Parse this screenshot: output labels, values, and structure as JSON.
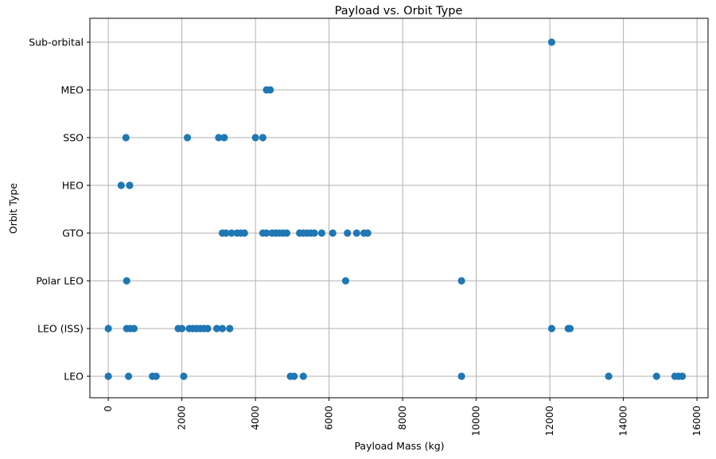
{
  "chart_data": {
    "type": "scatter",
    "title": "Payload vs. Orbit Type",
    "xlabel": "Payload Mass (kg)",
    "ylabel": "Orbit Type",
    "xlim": [
      -500,
      16300
    ],
    "x_ticks": [
      "0",
      "2000",
      "4000",
      "6000",
      "8000",
      "10000",
      "12000",
      "14000",
      "16000"
    ],
    "x_tick_values": [
      0,
      2000,
      4000,
      6000,
      8000,
      10000,
      12000,
      14000,
      16000
    ],
    "categories": [
      "LEO",
      "LEO (ISS)",
      "Polar LEO",
      "GTO",
      "HEO",
      "SSO",
      "MEO",
      "Sub-orbital"
    ],
    "grid": true,
    "point_color": "#1f77b4",
    "series": [
      {
        "points": [
          [
            0,
            "LEO"
          ],
          [
            550,
            "LEO"
          ],
          [
            1200,
            "LEO"
          ],
          [
            1300,
            "LEO"
          ],
          [
            2050,
            "LEO"
          ],
          [
            4950,
            "LEO"
          ],
          [
            5050,
            "LEO"
          ],
          [
            5300,
            "LEO"
          ],
          [
            9600,
            "LEO"
          ],
          [
            13600,
            "LEO"
          ],
          [
            14900,
            "LEO"
          ],
          [
            15400,
            "LEO"
          ],
          [
            15500,
            "LEO"
          ],
          [
            15600,
            "LEO"
          ],
          [
            0,
            "LEO (ISS)"
          ],
          [
            500,
            "LEO (ISS)"
          ],
          [
            600,
            "LEO (ISS)"
          ],
          [
            700,
            "LEO (ISS)"
          ],
          [
            1900,
            "LEO (ISS)"
          ],
          [
            2000,
            "LEO (ISS)"
          ],
          [
            2200,
            "LEO (ISS)"
          ],
          [
            2300,
            "LEO (ISS)"
          ],
          [
            2400,
            "LEO (ISS)"
          ],
          [
            2500,
            "LEO (ISS)"
          ],
          [
            2600,
            "LEO (ISS)"
          ],
          [
            2700,
            "LEO (ISS)"
          ],
          [
            2950,
            "LEO (ISS)"
          ],
          [
            3100,
            "LEO (ISS)"
          ],
          [
            3300,
            "LEO (ISS)"
          ],
          [
            12050,
            "LEO (ISS)"
          ],
          [
            12500,
            "LEO (ISS)"
          ],
          [
            12550,
            "LEO (ISS)"
          ],
          [
            500,
            "Polar LEO"
          ],
          [
            6450,
            "Polar LEO"
          ],
          [
            9600,
            "Polar LEO"
          ],
          [
            3100,
            "GTO"
          ],
          [
            3200,
            "GTO"
          ],
          [
            3350,
            "GTO"
          ],
          [
            3500,
            "GTO"
          ],
          [
            3600,
            "GTO"
          ],
          [
            3700,
            "GTO"
          ],
          [
            4200,
            "GTO"
          ],
          [
            4300,
            "GTO"
          ],
          [
            4450,
            "GTO"
          ],
          [
            4550,
            "GTO"
          ],
          [
            4650,
            "GTO"
          ],
          [
            4750,
            "GTO"
          ],
          [
            4850,
            "GTO"
          ],
          [
            5200,
            "GTO"
          ],
          [
            5300,
            "GTO"
          ],
          [
            5400,
            "GTO"
          ],
          [
            5500,
            "GTO"
          ],
          [
            5600,
            "GTO"
          ],
          [
            5800,
            "GTO"
          ],
          [
            6100,
            "GTO"
          ],
          [
            6500,
            "GTO"
          ],
          [
            6750,
            "GTO"
          ],
          [
            6950,
            "GTO"
          ],
          [
            7050,
            "GTO"
          ],
          [
            350,
            "HEO"
          ],
          [
            580,
            "HEO"
          ],
          [
            480,
            "SSO"
          ],
          [
            2150,
            "SSO"
          ],
          [
            3000,
            "SSO"
          ],
          [
            3150,
            "SSO"
          ],
          [
            4000,
            "SSO"
          ],
          [
            4200,
            "SSO"
          ],
          [
            4300,
            "MEO"
          ],
          [
            4400,
            "MEO"
          ],
          [
            12050,
            "Sub-orbital"
          ]
        ]
      }
    ]
  }
}
